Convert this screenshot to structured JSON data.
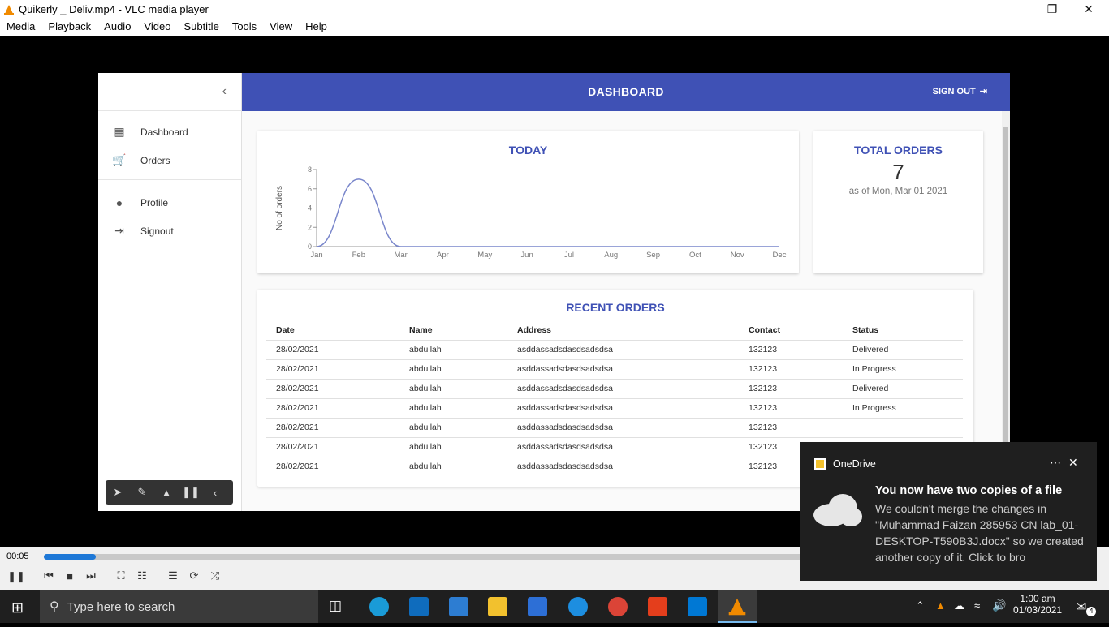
{
  "window": {
    "title": "Quikerly _ Deliv.mp4 - VLC media player"
  },
  "menu": [
    "Media",
    "Playback",
    "Audio",
    "Video",
    "Subtitle",
    "Tools",
    "View",
    "Help"
  ],
  "sidebar": {
    "collapse_icon": "chevron-left-icon",
    "items": [
      {
        "label": "Dashboard",
        "icon": "dashboard-icon"
      },
      {
        "label": "Orders",
        "icon": "cart-icon"
      },
      {
        "label": "Profile",
        "icon": "person-icon"
      },
      {
        "label": "Signout",
        "icon": "signout-icon"
      }
    ]
  },
  "header": {
    "title": "DASHBOARD",
    "signout": "SIGN OUT"
  },
  "today": {
    "title": "TODAY"
  },
  "total_orders": {
    "title": "TOTAL ORDERS",
    "count": "7",
    "as_of": "as of Mon, Mar 01 2021"
  },
  "recent_orders": {
    "title": "RECENT ORDERS",
    "columns": [
      "Date",
      "Name",
      "Address",
      "Contact",
      "Status"
    ],
    "rows": [
      [
        "28/02/2021",
        "abdullah",
        "asddassadsdasdsadsdsa",
        "132123",
        "Delivered"
      ],
      [
        "28/02/2021",
        "abdullah",
        "asddassadsdasdsadsdsa",
        "132123",
        "In Progress"
      ],
      [
        "28/02/2021",
        "abdullah",
        "asddassadsdasdsadsdsa",
        "132123",
        "Delivered"
      ],
      [
        "28/02/2021",
        "abdullah",
        "asddassadsdasdsadsdsa",
        "132123",
        "In Progress"
      ],
      [
        "28/02/2021",
        "abdullah",
        "asddassadsdasdsadsdsa",
        "132123",
        ""
      ],
      [
        "28/02/2021",
        "abdullah",
        "asddassadsdasdsadsdsa",
        "132123",
        ""
      ],
      [
        "28/02/2021",
        "abdullah",
        "asddassadsdasdsadsdsa",
        "132123",
        ""
      ]
    ]
  },
  "chart_data": {
    "type": "line",
    "categories": [
      "Jan",
      "Feb",
      "Mar",
      "Apr",
      "May",
      "Jun",
      "Jul",
      "Aug",
      "Sep",
      "Oct",
      "Nov",
      "Dec"
    ],
    "values": [
      0,
      7,
      0,
      0,
      0,
      0,
      0,
      0,
      0,
      0,
      0,
      0
    ],
    "ylabel": "No of orders",
    "ylim": [
      0,
      8
    ],
    "yticks": [
      0,
      2,
      4,
      6,
      8
    ],
    "color": "#7986cb"
  },
  "player": {
    "elapsed": "00:05",
    "progress": 0.05
  },
  "toast": {
    "app": "OneDrive",
    "heading": "You now have two copies of a file",
    "body": "We couldn't merge the changes in \"Muhammad Faizan 285953 CN lab_01-DESKTOP-T590B3J.docx\" so we created another copy of it. Click to bro"
  },
  "taskbar": {
    "search_placeholder": "Type here to search",
    "time": "1:00 am",
    "date": "01/03/2021",
    "notif_count": "4"
  }
}
